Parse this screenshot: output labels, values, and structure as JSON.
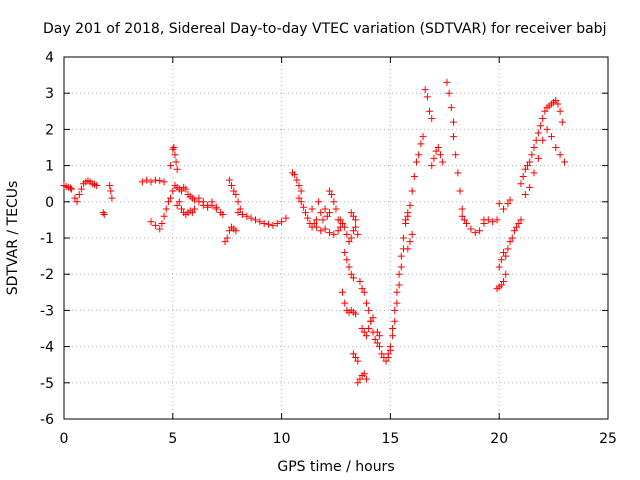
{
  "chart_data": {
    "type": "scatter",
    "title": "Day 201 of 2018, Sidereal Day-to-day VTEC variation (SDTVAR) for receiver babj",
    "xlabel": "GPS time / hours",
    "ylabel": "SDTVAR / TECUs",
    "xlim": [
      0,
      25
    ],
    "ylim": [
      -6,
      4
    ],
    "xticks": [
      0,
      5,
      10,
      15,
      20,
      25
    ],
    "yticks": [
      -6,
      -5,
      -4,
      -3,
      -2,
      -1,
      0,
      1,
      2,
      3,
      4
    ],
    "xtick_labels": [
      "0",
      "5",
      "10",
      "15",
      "20",
      "25"
    ],
    "ytick_labels": [
      "-6",
      "-5",
      "-4",
      "-3",
      "-2",
      "-1",
      "0",
      "1",
      "2",
      "3",
      "4"
    ],
    "grid": true,
    "marker": "+",
    "color": "#ff0000",
    "series": [
      {
        "name": "t0",
        "x": [
          0.0,
          0.1,
          0.2,
          0.3,
          0.35
        ],
        "y": [
          0.45,
          0.42,
          0.4,
          0.38,
          0.35
        ]
      },
      {
        "name": "t1",
        "x": [
          0.5,
          0.6,
          0.7,
          0.8,
          0.9,
          1.0,
          1.1,
          1.2,
          1.3,
          1.4,
          1.5
        ],
        "y": [
          0.1,
          0.0,
          0.2,
          0.35,
          0.5,
          0.55,
          0.58,
          0.55,
          0.5,
          0.48,
          0.45
        ]
      },
      {
        "name": "t2",
        "x": [
          1.8,
          1.85
        ],
        "y": [
          -0.3,
          -0.35
        ]
      },
      {
        "name": "t3",
        "x": [
          2.1,
          2.15,
          2.2
        ],
        "y": [
          0.45,
          0.3,
          0.1
        ]
      },
      {
        "name": "t4",
        "x": [
          3.6,
          3.8,
          4.0,
          4.2,
          4.4,
          4.6
        ],
        "y": [
          0.55,
          0.6,
          0.55,
          0.6,
          0.58,
          0.55
        ]
      },
      {
        "name": "t5",
        "x": [
          4.0,
          4.2,
          4.4,
          4.5,
          4.6,
          4.7,
          4.8,
          4.9
        ],
        "y": [
          -0.55,
          -0.65,
          -0.75,
          -0.6,
          -0.4,
          -0.2,
          0.0,
          0.1
        ]
      },
      {
        "name": "t6",
        "x": [
          4.9,
          5.0,
          5.05,
          5.1,
          5.15,
          5.2
        ],
        "y": [
          1.0,
          1.45,
          1.5,
          1.3,
          1.1,
          0.9
        ]
      },
      {
        "name": "t7",
        "x": [
          5.0,
          5.1,
          5.2,
          5.3,
          5.4,
          5.5,
          5.6,
          5.7,
          5.8,
          5.9
        ],
        "y": [
          0.3,
          0.45,
          0.4,
          0.35,
          0.3,
          0.4,
          0.35,
          0.2,
          0.15,
          0.1
        ]
      },
      {
        "name": "t8",
        "x": [
          5.2,
          5.3,
          5.4,
          5.5,
          5.6,
          5.7,
          5.8,
          5.9,
          6.0
        ],
        "y": [
          -0.1,
          0.0,
          -0.2,
          -0.3,
          -0.35,
          -0.3,
          -0.25,
          -0.3,
          -0.2
        ]
      },
      {
        "name": "t9",
        "x": [
          6.0,
          6.2,
          6.4,
          6.6,
          6.8,
          7.0,
          7.2,
          7.3
        ],
        "y": [
          0.05,
          0.0,
          -0.1,
          -0.15,
          -0.1,
          -0.2,
          -0.3,
          -0.35
        ]
      },
      {
        "name": "t10",
        "x": [
          6.2,
          6.4,
          6.6,
          6.8,
          7.0
        ],
        "y": [
          0.1,
          0.0,
          -0.1,
          0.0,
          -0.15
        ]
      },
      {
        "name": "t11",
        "x": [
          7.4,
          7.5,
          7.6,
          7.7,
          7.8,
          7.9
        ],
        "y": [
          -1.1,
          -1.0,
          -0.8,
          -0.7,
          -0.75,
          -0.8
        ]
      },
      {
        "name": "t12",
        "x": [
          7.6,
          7.7,
          7.8,
          7.9,
          8.0,
          8.1
        ],
        "y": [
          0.6,
          0.45,
          0.3,
          0.2,
          0.0,
          -0.2
        ]
      },
      {
        "name": "t13",
        "x": [
          8.0,
          8.2,
          8.4,
          8.6,
          8.8,
          9.0,
          9.2,
          9.4,
          9.6,
          9.8,
          10.0,
          10.2
        ],
        "y": [
          -0.3,
          -0.35,
          -0.4,
          -0.45,
          -0.5,
          -0.55,
          -0.6,
          -0.62,
          -0.65,
          -0.6,
          -0.55,
          -0.45
        ]
      },
      {
        "name": "t14",
        "x": [
          10.5,
          10.6,
          10.7,
          10.8,
          10.9
        ],
        "y": [
          0.8,
          0.75,
          0.6,
          0.45,
          0.3
        ]
      },
      {
        "name": "t15",
        "x": [
          10.8,
          10.9,
          11.0,
          11.1,
          11.2,
          11.3,
          11.4
        ],
        "y": [
          0.1,
          0.0,
          -0.15,
          -0.3,
          -0.45,
          -0.6,
          -0.7
        ]
      },
      {
        "name": "t16",
        "x": [
          11.4,
          11.5,
          11.6,
          11.7,
          11.8,
          11.9,
          12.0,
          12.1,
          12.2
        ],
        "y": [
          -0.2,
          -0.6,
          -0.5,
          0.0,
          -0.3,
          -0.5,
          -0.2,
          -0.4,
          -0.3
        ]
      },
      {
        "name": "t17",
        "x": [
          11.6,
          11.8,
          12.0,
          12.2,
          12.4
        ],
        "y": [
          -0.7,
          -0.8,
          -0.75,
          -0.85,
          -0.9
        ]
      },
      {
        "name": "t18",
        "x": [
          12.2,
          12.3,
          12.4,
          12.5,
          12.6,
          12.7
        ],
        "y": [
          0.3,
          0.2,
          0.0,
          -0.2,
          -0.5,
          -0.7
        ]
      },
      {
        "name": "t19",
        "x": [
          12.6,
          12.7,
          12.8,
          12.9,
          13.0,
          13.1,
          13.2,
          13.3,
          13.4,
          13.5
        ],
        "y": [
          -0.8,
          -0.5,
          -0.6,
          -0.7,
          -0.9,
          -1.1,
          -1.0,
          -0.8,
          -0.7,
          -0.9
        ]
      },
      {
        "name": "t20",
        "x": [
          12.9,
          13.0,
          13.1,
          13.2,
          13.3
        ],
        "y": [
          -1.4,
          -1.6,
          -1.8,
          -2.0,
          -2.1
        ]
      },
      {
        "name": "t21",
        "x": [
          13.2,
          13.3,
          13.4
        ],
        "y": [
          -0.3,
          -0.4,
          -0.5
        ]
      },
      {
        "name": "t22",
        "x": [
          12.8,
          12.9,
          13.0,
          13.1,
          13.2,
          13.3,
          13.4
        ],
        "y": [
          -2.5,
          -2.8,
          -3.0,
          -3.05,
          -3.0,
          -3.05,
          -3.1
        ]
      },
      {
        "name": "t23",
        "x": [
          13.3,
          13.4,
          13.5
        ],
        "y": [
          -4.2,
          -4.3,
          -4.4
        ]
      },
      {
        "name": "t24",
        "x": [
          13.5,
          13.6,
          13.7,
          13.8,
          13.9
        ],
        "y": [
          -5.0,
          -4.9,
          -4.8,
          -4.75,
          -4.9
        ]
      },
      {
        "name": "t25",
        "x": [
          13.6,
          13.7,
          13.8,
          13.9,
          14.0,
          14.1,
          14.2
        ],
        "y": [
          -2.2,
          -2.4,
          -2.5,
          -2.8,
          -3.0,
          -3.3,
          -3.2
        ]
      },
      {
        "name": "t26",
        "x": [
          13.7,
          13.8,
          13.9,
          14.0,
          14.1,
          14.2,
          14.3,
          14.4,
          14.5
        ],
        "y": [
          -3.5,
          -3.6,
          -3.7,
          -3.5,
          -3.3,
          -3.6,
          -3.8,
          -3.6,
          -3.7
        ]
      },
      {
        "name": "t27",
        "x": [
          14.4,
          14.5,
          14.6,
          14.7,
          14.8,
          14.9,
          15.0,
          15.1,
          15.2,
          15.3,
          15.4,
          15.5,
          15.6,
          15.7,
          15.8
        ],
        "y": [
          -3.9,
          -4.0,
          -4.2,
          -4.3,
          -4.4,
          -4.3,
          -4.0,
          -3.5,
          -3.0,
          -2.5,
          -2.0,
          -1.5,
          -1.0,
          -0.6,
          -0.4
        ]
      },
      {
        "name": "t28",
        "x": [
          14.9,
          15.0,
          15.1,
          15.2,
          15.3,
          15.4,
          15.5,
          15.6
        ],
        "y": [
          -4.2,
          -4.1,
          -3.7,
          -3.3,
          -2.8,
          -2.3,
          -1.8,
          -1.3
        ]
      },
      {
        "name": "t29",
        "x": [
          15.7,
          15.8,
          15.9,
          16.0,
          16.1,
          16.2,
          16.3,
          16.4,
          16.5
        ],
        "y": [
          -0.5,
          -0.3,
          -0.1,
          0.3,
          0.7,
          1.1,
          1.3,
          1.6,
          1.8
        ]
      },
      {
        "name": "t30",
        "x": [
          15.8,
          15.9,
          16.0
        ],
        "y": [
          -1.3,
          -1.1,
          -0.9
        ]
      },
      {
        "name": "t31",
        "x": [
          16.6,
          16.7,
          16.8,
          16.9
        ],
        "y": [
          3.1,
          2.9,
          2.5,
          2.3
        ]
      },
      {
        "name": "t32",
        "x": [
          16.9,
          17.0,
          17.1,
          17.2,
          17.3,
          17.4
        ],
        "y": [
          1.0,
          1.2,
          1.4,
          1.5,
          1.3,
          1.1
        ]
      },
      {
        "name": "t33",
        "x": [
          17.6,
          17.7,
          17.8,
          17.9
        ],
        "y": [
          3.3,
          3.0,
          2.6,
          2.2
        ]
      },
      {
        "name": "t34",
        "x": [
          17.9,
          18.0,
          18.1,
          18.2,
          18.3,
          18.4
        ],
        "y": [
          1.8,
          1.3,
          0.8,
          0.3,
          -0.2,
          -0.5
        ]
      },
      {
        "name": "t35",
        "x": [
          18.3,
          18.5,
          18.7,
          18.9,
          19.1,
          19.3
        ],
        "y": [
          -0.4,
          -0.6,
          -0.75,
          -0.85,
          -0.8,
          -0.6
        ]
      },
      {
        "name": "t36",
        "x": [
          19.3,
          19.5,
          19.7,
          19.9
        ],
        "y": [
          -0.5,
          -0.5,
          -0.55,
          -0.5
        ]
      },
      {
        "name": "t37",
        "x": [
          19.9,
          20.0,
          20.1,
          20.2,
          20.3
        ],
        "y": [
          -2.4,
          -2.35,
          -2.3,
          -2.2,
          -2.0
        ]
      },
      {
        "name": "t38",
        "x": [
          20.0,
          20.1,
          20.2,
          20.3,
          20.4,
          20.5,
          20.6,
          20.7,
          20.8,
          20.9,
          21.0
        ],
        "y": [
          -1.8,
          -1.6,
          -1.4,
          -1.5,
          -1.3,
          -1.1,
          -1.0,
          -0.8,
          -0.7,
          -0.6,
          -0.5
        ]
      },
      {
        "name": "t39",
        "x": [
          20.0,
          20.2,
          20.4,
          20.5
        ],
        "y": [
          -0.05,
          -0.2,
          -0.05,
          0.05
        ]
      },
      {
        "name": "t40",
        "x": [
          21.0,
          21.1,
          21.2,
          21.3,
          21.4,
          21.5,
          21.6,
          21.7,
          21.8,
          21.9,
          22.0,
          22.1,
          22.2,
          22.3,
          22.4,
          22.5,
          22.6,
          22.7,
          22.8,
          22.9
        ],
        "y": [
          0.5,
          0.7,
          0.9,
          1.0,
          1.1,
          1.3,
          1.5,
          1.7,
          1.9,
          2.1,
          2.3,
          2.5,
          2.6,
          2.65,
          2.7,
          2.75,
          2.8,
          2.7,
          2.5,
          2.2
        ]
      },
      {
        "name": "t41",
        "x": [
          21.2,
          21.4,
          21.6,
          21.8,
          22.0,
          22.2,
          22.4,
          22.6,
          22.8,
          23.0
        ],
        "y": [
          0.2,
          0.4,
          0.8,
          1.2,
          1.7,
          2.0,
          1.8,
          1.5,
          1.3,
          1.1
        ]
      }
    ]
  }
}
